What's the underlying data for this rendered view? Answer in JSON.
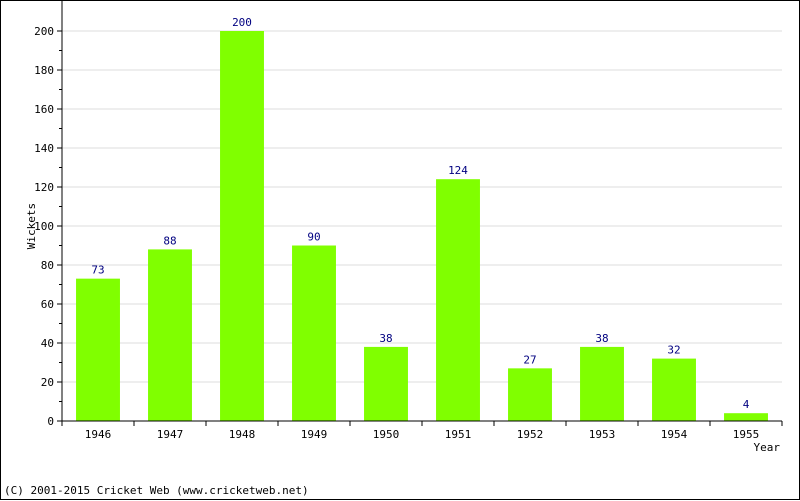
{
  "chart_data": {
    "type": "bar",
    "categories": [
      "1946",
      "1947",
      "1948",
      "1949",
      "1950",
      "1951",
      "1952",
      "1953",
      "1954",
      "1955"
    ],
    "values": [
      73,
      88,
      200,
      90,
      38,
      124,
      27,
      38,
      32,
      4
    ],
    "xlabel": "Year",
    "ylabel": "Wickets",
    "ylim": [
      0,
      200
    ],
    "yticks": [
      0,
      20,
      40,
      60,
      80,
      100,
      120,
      140,
      160,
      180,
      200
    ],
    "grid": true,
    "bar_color": "#80ff00",
    "label_color": "#000080"
  },
  "footer": {
    "copyright": "(C) 2001-2015 Cricket Web (www.cricketweb.net)"
  }
}
